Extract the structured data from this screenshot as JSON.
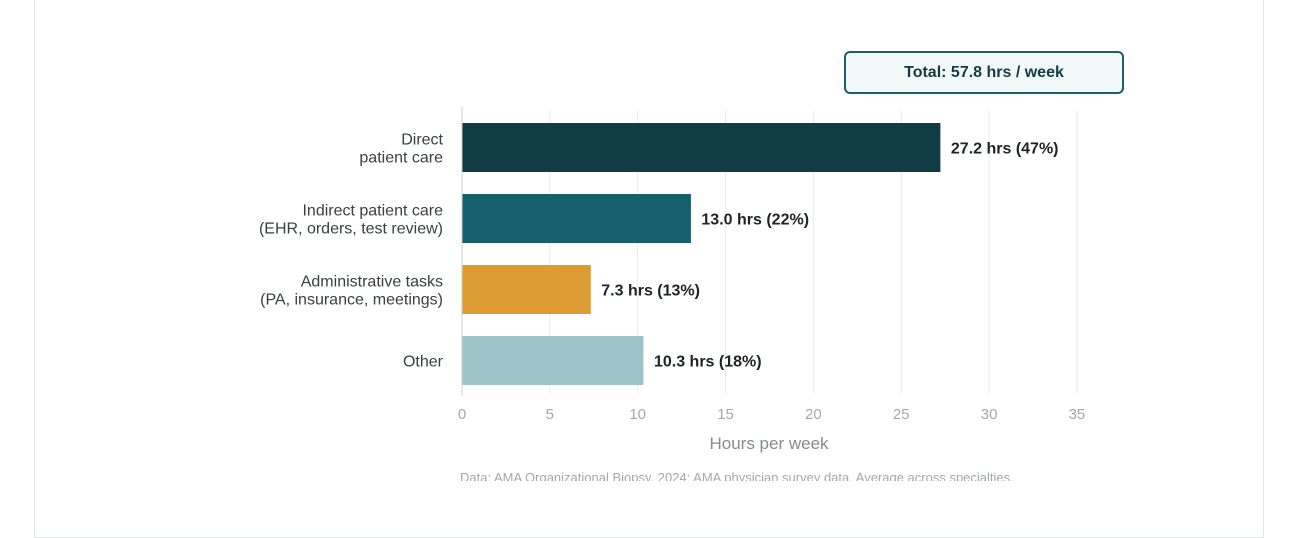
{
  "total_badge": "Total: 57.8 hrs / week",
  "source_note": "Data: AMA Organizational Biopsy, 2024; AMA physician survey data. Average across specialties.",
  "colors": {
    "direct": "#123c45",
    "indirect": "#17606d",
    "admin": "#dd9b33",
    "other": "#9ec4c9",
    "grid": "#e9ebec",
    "axis": "#c9cdd0"
  },
  "chart_data": {
    "type": "bar",
    "orientation": "horizontal",
    "categories": [
      [
        "Direct",
        "patient care"
      ],
      [
        "Indirect patient care",
        "(EHR, orders, test review)"
      ],
      [
        "Administrative tasks",
        "(PA, insurance, meetings)"
      ],
      [
        "Other"
      ]
    ],
    "values": [
      27.2,
      13.0,
      7.3,
      10.3
    ],
    "value_labels": [
      "27.2 hrs (47%)",
      "13.0 hrs (22%)",
      "7.3 hrs (13%)",
      "10.3 hrs (18%)"
    ],
    "bar_colors": [
      "#123c45",
      "#17606d",
      "#dd9b33",
      "#9ec4c9"
    ],
    "xlabel": "Hours per week",
    "xlim": [
      0,
      35
    ],
    "xticks": [
      0,
      5,
      10,
      15,
      20,
      25,
      30,
      35
    ],
    "grid": true
  }
}
